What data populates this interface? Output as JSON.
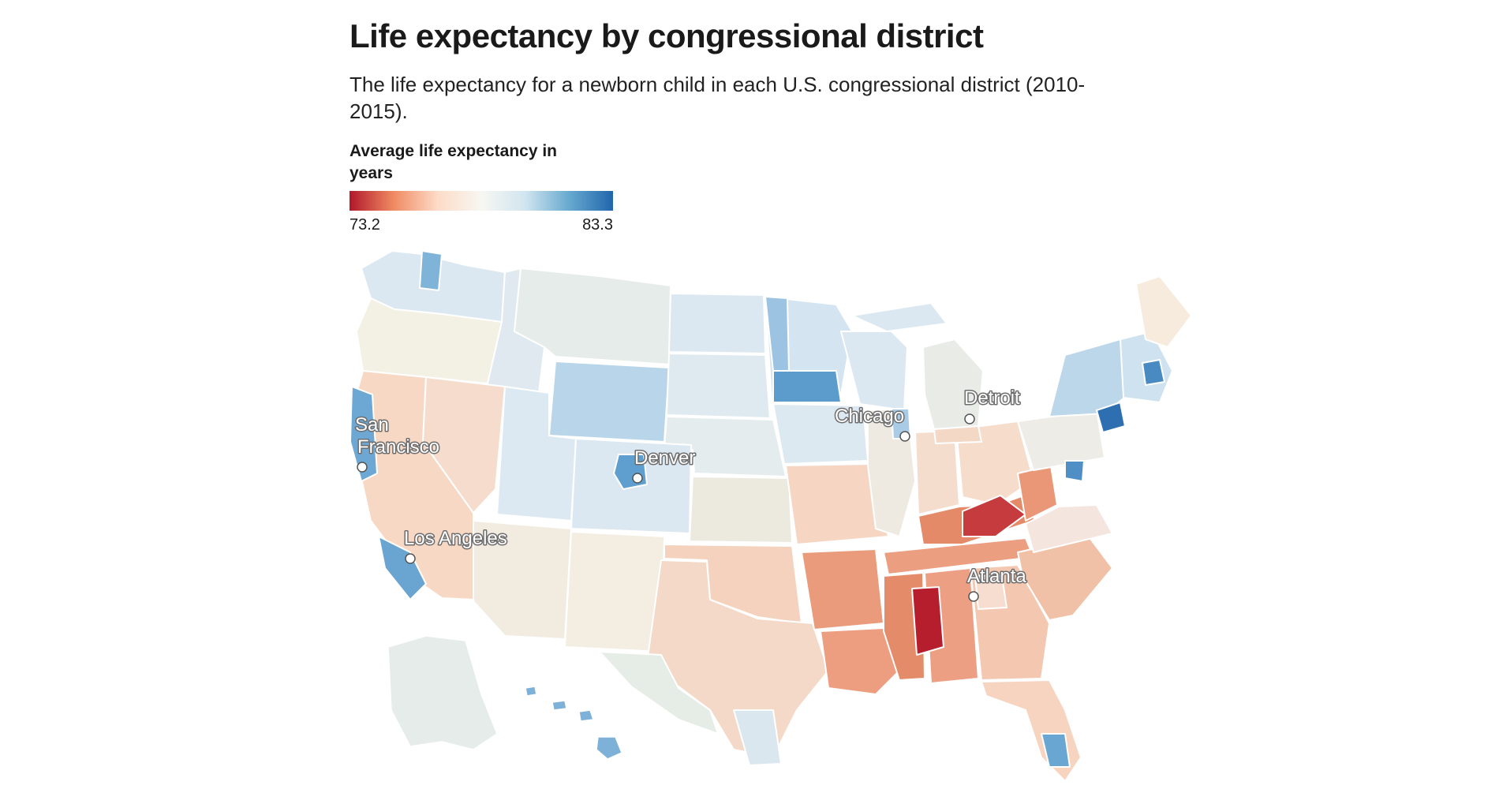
{
  "header": {
    "title": "Life expectancy by congressional district",
    "subtitle": "The life expectancy for a newborn child in each U.S. congressional district (2010-2015)."
  },
  "legend": {
    "title": "Average life expectancy in years",
    "min_label": "73.2",
    "max_label": "83.3",
    "min_value": 73.2,
    "max_value": 83.3,
    "colors": [
      "#b2182b",
      "#ef8a62",
      "#fddbc7",
      "#f7f7f2",
      "#d1e5f0",
      "#67a9cf",
      "#2166ac"
    ]
  },
  "cities": [
    {
      "name": "San Francisco",
      "lines": [
        "San",
        "Francisco"
      ]
    },
    {
      "name": "Los Angeles",
      "lines": [
        "Los Angeles"
      ]
    },
    {
      "name": "Denver",
      "lines": [
        "Denver"
      ]
    },
    {
      "name": "Chicago",
      "lines": [
        "Chicago"
      ]
    },
    {
      "name": "Detroit",
      "lines": [
        "Detroit"
      ]
    },
    {
      "name": "Atlanta",
      "lines": [
        "Atlanta"
      ]
    }
  ]
}
